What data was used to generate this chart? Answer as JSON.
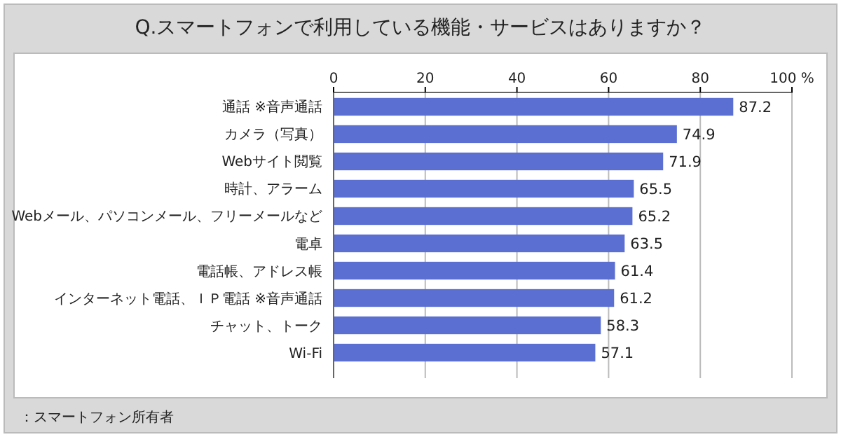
{
  "chart_data": {
    "type": "bar",
    "orientation": "horizontal",
    "title": "Q.スマートフォンで利用している機能・サービスはありますか？",
    "categories": [
      "通話 ※音声通話",
      "カメラ（写真）",
      "Webサイト閲覧",
      "時計、アラーム",
      "Webメール、パソコンメール、フリーメールなど",
      "電卓",
      "電話帳、アドレス帳",
      "インターネット電話、ＩＰ電話 ※音声通話",
      "チャット、トーク",
      "Wi-Fi"
    ],
    "values": [
      87.2,
      74.9,
      71.9,
      65.5,
      65.2,
      63.5,
      61.4,
      61.2,
      58.3,
      57.1
    ],
    "color": "#5b6fd2",
    "xlim": [
      0,
      100
    ],
    "xticks": [
      0,
      20,
      40,
      60,
      80,
      {
        "value": 100,
        "label": "100 %"
      }
    ],
    "grid": "x",
    "data_labels": true,
    "annotations": [
      "：スマートフォン所有者"
    ]
  }
}
